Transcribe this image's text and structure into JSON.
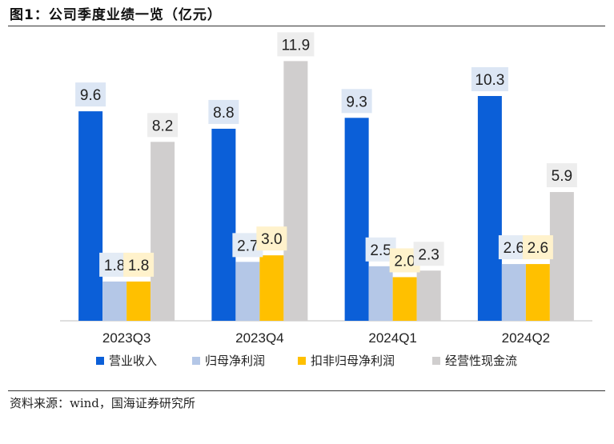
{
  "figure": {
    "title": "图1：公司季度业绩一览（亿元）",
    "source": "资料来源：wind，国海证券研究所"
  },
  "chart_data": {
    "type": "bar",
    "title": "公司季度业绩一览（亿元）",
    "xlabel": "",
    "ylabel": "",
    "ylim": [
      0,
      12.5
    ],
    "grid": false,
    "legend_position": "bottom",
    "categories": [
      "2023Q3",
      "2023Q4",
      "2024Q1",
      "2024Q2"
    ],
    "series": [
      {
        "name": "营业收入",
        "color": "#0B5FD8",
        "label_bg": "#DCE6F4",
        "values": [
          9.6,
          8.8,
          9.3,
          10.3
        ]
      },
      {
        "name": "归母净利润",
        "color": "#B4C7E7",
        "label_bg": "#E3EBF5",
        "values": [
          1.8,
          2.7,
          2.5,
          2.6
        ]
      },
      {
        "name": "扣非归母净利润",
        "color": "#FFC000",
        "label_bg": "#FFF2CC",
        "values": [
          1.8,
          3.0,
          2.0,
          2.6
        ]
      },
      {
        "name": "经营性现金流",
        "color": "#D0CECE",
        "label_bg": "#EDEDED",
        "values": [
          8.2,
          11.9,
          2.3,
          5.9
        ]
      }
    ]
  }
}
